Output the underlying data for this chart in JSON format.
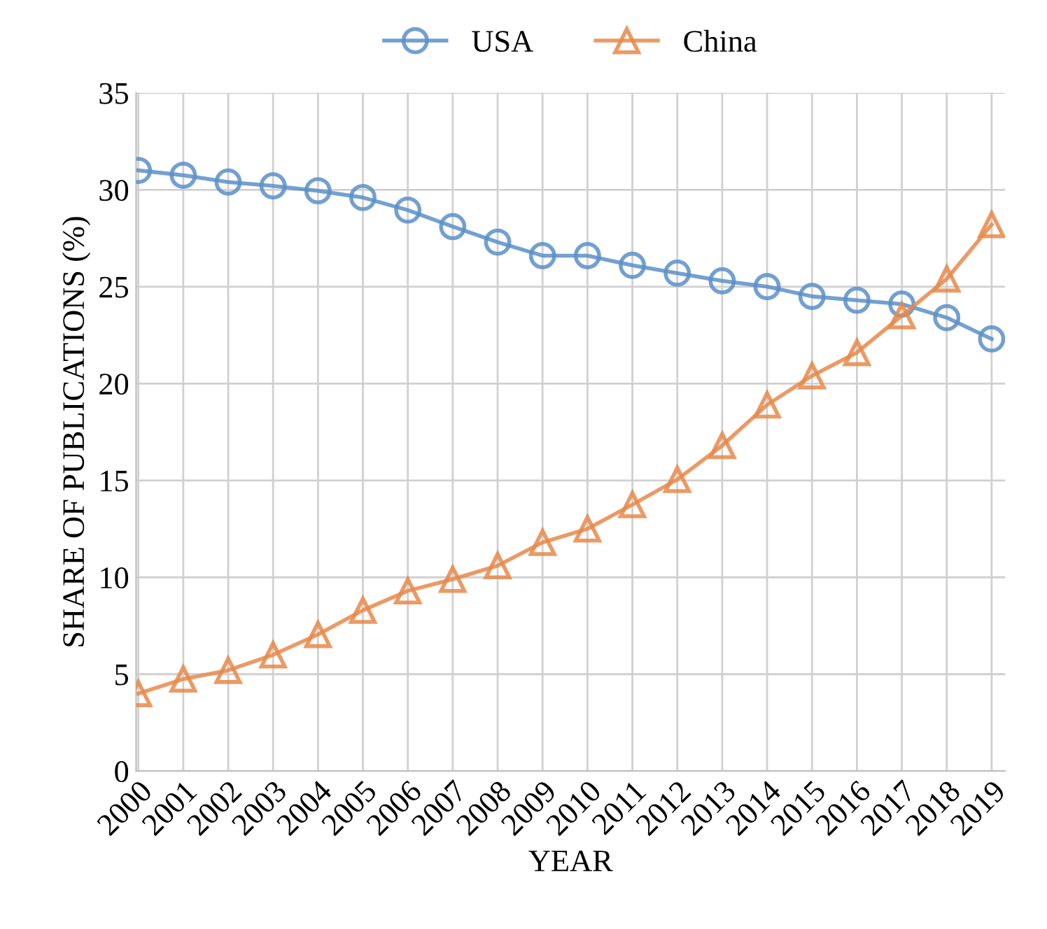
{
  "chart_data": {
    "type": "line",
    "xlabel": "YEAR",
    "ylabel": "SHARE OF PUBLICATIONS (%)",
    "categories": [
      "2000",
      "2001",
      "2002",
      "2003",
      "2004",
      "2005",
      "2006",
      "2007",
      "2008",
      "2009",
      "2010",
      "2011",
      "2012",
      "2013",
      "2014",
      "2015",
      "2016",
      "2017",
      "2018",
      "2019"
    ],
    "series": [
      {
        "name": "USA",
        "color": "#5b8fc9",
        "marker": "circle",
        "values": [
          31.0,
          30.75,
          30.4,
          30.2,
          29.95,
          29.6,
          28.95,
          28.1,
          27.3,
          26.6,
          26.6,
          26.1,
          25.7,
          25.3,
          25.0,
          24.5,
          24.3,
          24.1,
          23.4,
          22.3
        ]
      },
      {
        "name": "China",
        "color": "#e8884a",
        "marker": "triangle",
        "values": [
          4.0,
          4.75,
          5.2,
          6.0,
          7.05,
          8.3,
          9.3,
          9.9,
          10.6,
          11.8,
          12.5,
          13.75,
          15.05,
          16.8,
          18.9,
          20.4,
          21.6,
          23.5,
          25.4,
          28.2
        ]
      }
    ],
    "ylim": [
      0,
      35
    ],
    "yticks": [
      0,
      5,
      10,
      15,
      20,
      25,
      30,
      35
    ],
    "grid": true,
    "legend": "top",
    "line_style": "solid"
  }
}
